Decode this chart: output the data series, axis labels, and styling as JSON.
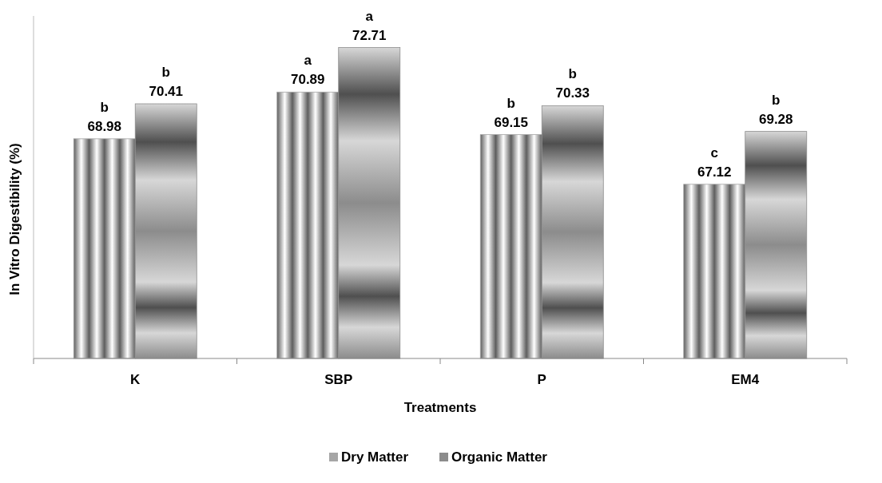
{
  "chart_data": {
    "type": "bar",
    "xlabel": "Treatments",
    "ylabel": "In Vitro Digestibility (%)",
    "categories": [
      "K",
      "SBP",
      "P",
      "EM4"
    ],
    "series": [
      {
        "name": "Dry Matter",
        "color": "#a6a6a6",
        "values": [
          68.98,
          70.89,
          69.15,
          67.12
        ]
      },
      {
        "name": "Organic Matter",
        "color": "#8c8c8c",
        "values": [
          70.41,
          72.71,
          70.33,
          69.28
        ]
      }
    ],
    "ylim": [
      60,
      74
    ],
    "tick_labels": "x",
    "data_labels": true,
    "legend": "bottom",
    "annotations": [
      "b",
      "b",
      "a",
      "a",
      "b",
      "b",
      "c",
      "b"
    ]
  }
}
